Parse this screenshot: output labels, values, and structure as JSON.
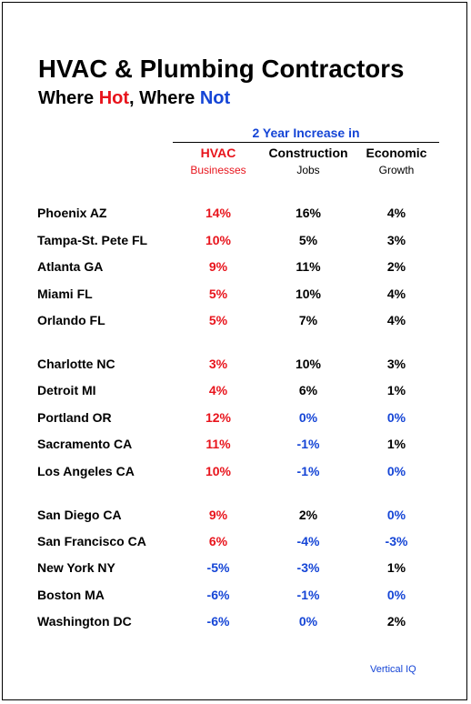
{
  "title": "HVAC & Plumbing Contractors",
  "subtitle": {
    "part1": "Where ",
    "hot": "Hot",
    "part2": ", Where ",
    "not": "Not"
  },
  "group_header": "2 Year Increase in",
  "columns": [
    {
      "head": "HVAC",
      "sub": "Businesses"
    },
    {
      "head": "Construction",
      "sub": "Jobs"
    },
    {
      "head": "Economic",
      "sub": "Growth"
    }
  ],
  "rows": [
    {
      "city": "Phoenix AZ",
      "hvac": "14%",
      "jobs": "16%",
      "growth": "4%"
    },
    {
      "city": "Tampa-St. Pete FL",
      "hvac": "10%",
      "jobs": "5%",
      "growth": "3%"
    },
    {
      "city": "Atlanta GA",
      "hvac": "9%",
      "jobs": "11%",
      "growth": "2%"
    },
    {
      "city": "Miami FL",
      "hvac": "5%",
      "jobs": "10%",
      "growth": "4%"
    },
    {
      "city": "Orlando FL",
      "hvac": "5%",
      "jobs": "7%",
      "growth": "4%"
    },
    {
      "city": "Charlotte NC",
      "hvac": "3%",
      "jobs": "10%",
      "growth": "3%"
    },
    {
      "city": "Detroit MI",
      "hvac": "4%",
      "jobs": "6%",
      "growth": "1%"
    },
    {
      "city": "Portland OR",
      "hvac": "12%",
      "jobs": "0%",
      "growth": "0%"
    },
    {
      "city": "Sacramento CA",
      "hvac": "11%",
      "jobs": "-1%",
      "growth": "1%"
    },
    {
      "city": "Los Angeles CA",
      "hvac": "10%",
      "jobs": "-1%",
      "growth": "0%"
    },
    {
      "city": "San Diego CA",
      "hvac": "9%",
      "jobs": "2%",
      "growth": "0%"
    },
    {
      "city": "San Francisco CA",
      "hvac": "6%",
      "jobs": "-4%",
      "growth": "-3%"
    },
    {
      "city": "New York NY",
      "hvac": "-5%",
      "jobs": "-3%",
      "growth": "1%"
    },
    {
      "city": "Boston MA",
      "hvac": "-6%",
      "jobs": "-1%",
      "growth": "0%"
    },
    {
      "city": "Washington DC",
      "hvac": "-6%",
      "jobs": "0%",
      "growth": "2%"
    }
  ],
  "footer": "Vertical IQ",
  "colors": {
    "hot": "#e8141c",
    "not": "#1545d6",
    "text": "#000000"
  }
}
